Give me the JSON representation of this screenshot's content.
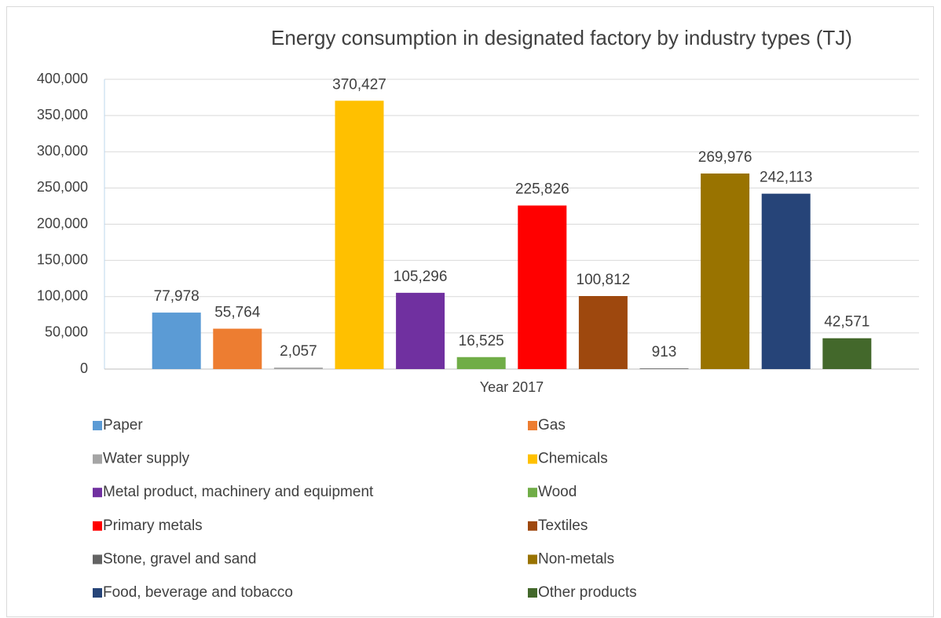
{
  "chart_data": {
    "type": "bar",
    "title": "Energy consumption in designated factory by industry types (TJ)",
    "categories": [
      "Year 2017"
    ],
    "series": [
      {
        "name": "Paper",
        "color": "#5b9bd5",
        "values": [
          77978
        ],
        "value_labels": [
          "77,978"
        ]
      },
      {
        "name": "Gas",
        "color": "#ed7d31",
        "values": [
          55764
        ],
        "value_labels": [
          "55,764"
        ]
      },
      {
        "name": "Water supply",
        "color": "#a5a5a5",
        "values": [
          2057
        ],
        "value_labels": [
          "2,057"
        ]
      },
      {
        "name": "Chemicals",
        "color": "#ffc000",
        "values": [
          370427
        ],
        "value_labels": [
          "370,427"
        ]
      },
      {
        "name": "Metal product, machinery and equipment",
        "color": "#7030a0",
        "values": [
          105296
        ],
        "value_labels": [
          "105,296"
        ]
      },
      {
        "name": "Wood",
        "color": "#70ad47",
        "values": [
          16525
        ],
        "value_labels": [
          "16,525"
        ]
      },
      {
        "name": "Primary metals",
        "color": "#ff0000",
        "values": [
          225826
        ],
        "value_labels": [
          "225,826"
        ]
      },
      {
        "name": "Textiles",
        "color": "#9e480e",
        "values": [
          100812
        ],
        "value_labels": [
          "100,812"
        ]
      },
      {
        "name": "Stone, gravel and sand",
        "color": "#636363",
        "values": [
          913
        ],
        "value_labels": [
          "913"
        ]
      },
      {
        "name": "Non-metals",
        "color": "#997300",
        "values": [
          269976
        ],
        "value_labels": [
          "269,976"
        ]
      },
      {
        "name": "Food, beverage and tobacco",
        "color": "#264478",
        "values": [
          242113
        ],
        "value_labels": [
          "242,113"
        ]
      },
      {
        "name": "Other products",
        "color": "#43682b",
        "values": [
          42571
        ],
        "value_labels": [
          "42,571"
        ]
      }
    ],
    "ylim": [
      0,
      400000
    ],
    "yticks": [
      0,
      {
        "value": 50000,
        "label": "50,000"
      },
      {
        "value": 100000,
        "label": "100,000"
      },
      {
        "value": 150000,
        "label": "150,000"
      },
      {
        "value": 200000,
        "label": "200,000"
      },
      {
        "value": 250000,
        "label": "250,000"
      },
      {
        "value": 300000,
        "label": "300,000"
      },
      {
        "value": 350000,
        "label": "350,000"
      },
      {
        "value": 400000,
        "label": "400,000"
      }
    ],
    "grid": true,
    "legend": "bottom"
  }
}
